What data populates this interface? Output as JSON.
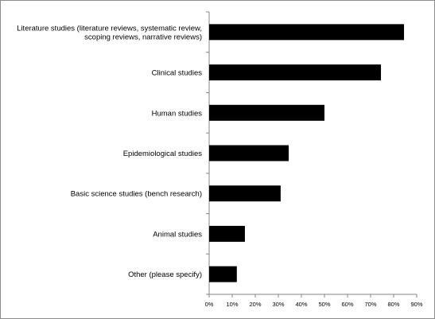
{
  "chart_data": {
    "type": "bar",
    "orientation": "horizontal",
    "categories": [
      [
        "Literature studies (literature reviews, systematic review,",
        "scoping reviews, narrative reviews)"
      ],
      [
        "Clinical studies"
      ],
      [
        "Human studies"
      ],
      [
        "Epidemiological studies"
      ],
      [
        "Basic science studies (bench research)"
      ],
      [
        "Animal studies"
      ],
      [
        "Other (please specify)"
      ]
    ],
    "values": [
      84.5,
      74.5,
      50,
      34.5,
      31,
      15.5,
      12
    ],
    "x_ticks": [
      "0%",
      "10%",
      "20%",
      "30%",
      "40%",
      "50%",
      "60%",
      "70%",
      "80%",
      "90%"
    ],
    "xlim": [
      0,
      90
    ],
    "bar_color": "#000000",
    "grid": false,
    "legend": "none",
    "title": "",
    "xlabel": "",
    "ylabel": ""
  }
}
